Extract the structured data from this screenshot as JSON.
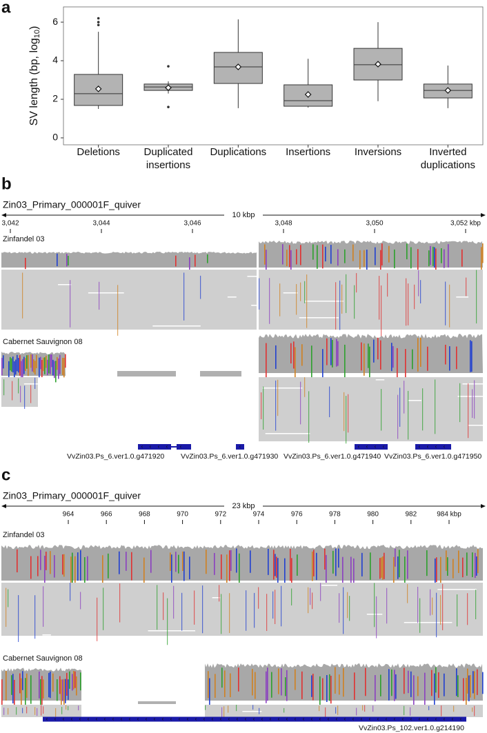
{
  "chart_data": {
    "type": "box",
    "y_label": {
      "main": "SV length (bp, log",
      "sub": "10",
      "end": ")"
    },
    "categories": [
      [
        "Deletions"
      ],
      [
        "Duplicated",
        "insertions"
      ],
      [
        "Duplications"
      ],
      [
        "Insertions"
      ],
      [
        "Inversions"
      ],
      [
        "Inverted",
        "duplications"
      ]
    ],
    "color": "#b3b3b3",
    "boxes": [
      {
        "min": 1.5,
        "q1": 1.68,
        "median": 2.29,
        "q3": 3.29,
        "max": 5.5,
        "mean": 2.54,
        "outliers": [
          6.2,
          6.0,
          5.85
        ]
      },
      {
        "min": 2.3,
        "q1": 2.46,
        "median": 2.64,
        "q3": 2.79,
        "max": 2.93,
        "mean": 2.6,
        "outliers": [
          3.71,
          1.6
        ]
      },
      {
        "min": 1.54,
        "q1": 2.82,
        "median": 3.68,
        "q3": 4.43,
        "max": 6.14,
        "mean": 3.68,
        "outliers": []
      },
      {
        "min": 1.57,
        "q1": 1.64,
        "median": 1.93,
        "q3": 2.75,
        "max": 4.1,
        "mean": 2.25,
        "outliers": []
      },
      {
        "min": 1.9,
        "q1": 3.0,
        "median": 3.79,
        "q3": 4.64,
        "max": 6.0,
        "mean": 3.82,
        "outliers": []
      },
      {
        "min": 1.54,
        "q1": 2.07,
        "median": 2.46,
        "q3": 2.79,
        "max": 3.75,
        "mean": 2.46,
        "outliers": []
      }
    ],
    "ylim": [
      -0.36,
      6.79
    ],
    "yticks": [
      0,
      2,
      4,
      6
    ]
  },
  "panel_labels": [
    "a",
    "b",
    "c"
  ],
  "panels": [
    {
      "locus": "Zin03_Primary_000001F_quiver",
      "span": "10 kbp",
      "ruler_ticks": [
        "3,042",
        "3,044",
        "3,046",
        "3,048",
        "3,050",
        "3,052 kbp"
      ],
      "tracks": [
        "Zinfandel 03",
        "Cabernet Sauvignon 08"
      ],
      "genes": [
        "VvZin03.Ps_6.ver1.0.g471920",
        "VvZin03.Ps_6.ver1.0.g471930",
        "VvZin03.Ps_6.ver1.0.g471940",
        "VvZin03.Ps_6.ver1.0.g471950"
      ]
    },
    {
      "locus": "Zin03_Primary_000001F_quiver",
      "span": "23 kbp",
      "ruler_ticks": [
        "964",
        "966",
        "968",
        "970",
        "972",
        "974",
        "976",
        "978",
        "980",
        "982",
        "984 kbp"
      ],
      "tracks": [
        "Zinfandel 03",
        "Cabernet Sauvignon 08"
      ],
      "genes": [
        "VvZin03.Ps_102.ver1.0.g214190"
      ]
    }
  ]
}
